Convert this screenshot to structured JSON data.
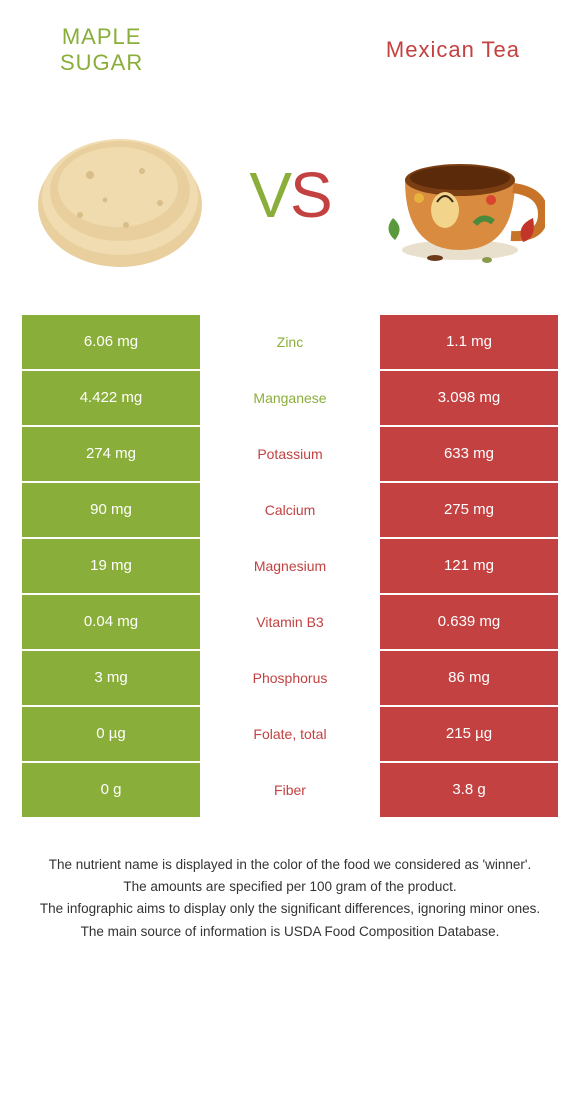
{
  "colors": {
    "left_color": "#8aae3a",
    "right_color": "#c34141",
    "background": "#ffffff",
    "text_dark": "#333333"
  },
  "header": {
    "left_title_line1": "Maple",
    "left_title_line2": "sugar",
    "right_title": "Mexican tea"
  },
  "vs": {
    "v": "V",
    "s": "S"
  },
  "rows": [
    {
      "left": "6.06 mg",
      "mid": "Zinc",
      "right": "1.1 mg",
      "winner": "left"
    },
    {
      "left": "4.422 mg",
      "mid": "Manganese",
      "right": "3.098 mg",
      "winner": "left"
    },
    {
      "left": "274 mg",
      "mid": "Potassium",
      "right": "633 mg",
      "winner": "right"
    },
    {
      "left": "90 mg",
      "mid": "Calcium",
      "right": "275 mg",
      "winner": "right"
    },
    {
      "left": "19 mg",
      "mid": "Magnesium",
      "right": "121 mg",
      "winner": "right"
    },
    {
      "left": "0.04 mg",
      "mid": "Vitamin B3",
      "right": "0.639 mg",
      "winner": "right"
    },
    {
      "left": "3 mg",
      "mid": "Phosphorus",
      "right": "86 mg",
      "winner": "right"
    },
    {
      "left": "0 µg",
      "mid": "Folate, total",
      "right": "215 µg",
      "winner": "right"
    },
    {
      "left": "0 g",
      "mid": "Fiber",
      "right": "3.8 g",
      "winner": "right"
    }
  ],
  "footnotes": {
    "line1": "The nutrient name is displayed in the color of the food we considered as 'winner'.",
    "line2": "The amounts are specified per 100 gram of the product.",
    "line3": "The infographic aims to display only the significant differences, ignoring minor ones.",
    "line4": "The main source of information is USDA Food Composition Database."
  }
}
